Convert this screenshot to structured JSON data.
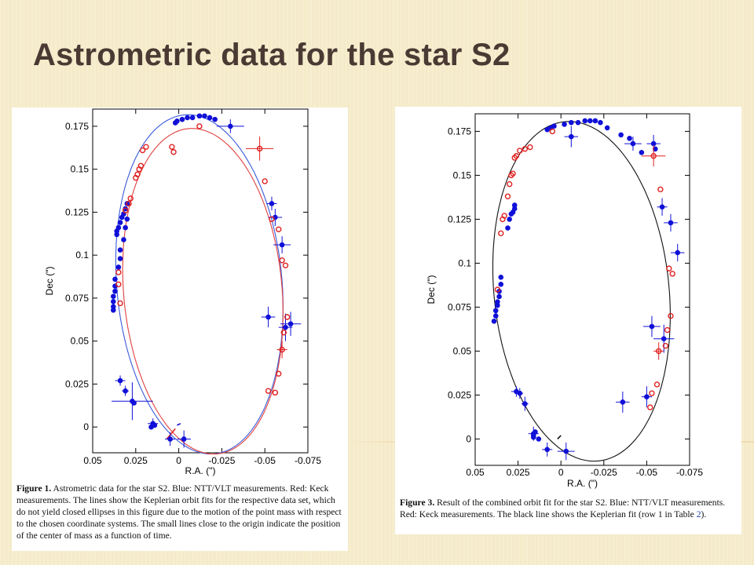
{
  "slide": {
    "title": "Astrometric data for the star S2"
  },
  "colors": {
    "ntt_vlt": "#1010d8",
    "keck": "#e02020",
    "combined_fit": "#111111"
  },
  "figures": [
    {
      "caption_lead": "Figure 1.",
      "caption_text": " Astrometric data for the star S2. Blue: NTT/VLT measurements. Red: Keck measurements. The lines show the Keplerian orbit fits for the respective data set, which do not yield closed ellipses in this figure due to the motion of the point mass with respect to the chosen coordinate systems. The small lines close to the origin indicate the position of the center of mass as a function of time."
    },
    {
      "caption_lead": "Figure 3.",
      "caption_text_1": " Result of the combined orbit fit for the star S2. Blue: NTT/VLT measurements. Red: Keck measurements. The black line shows the Keplerian fit (row 1 in Table ",
      "caption_ref": "2",
      "caption_text_2": ")."
    }
  ],
  "chart_data": [
    {
      "type": "scatter",
      "xlabel": "R.A. (\")",
      "ylabel": "Dec (\")",
      "xlim": [
        0.05,
        -0.075
      ],
      "ylim": [
        -0.015,
        0.185
      ],
      "x_ticks": [
        "0.05",
        "0.025",
        "0",
        "-0.025",
        "-0.05",
        "-0.075"
      ],
      "y_ticks": [
        "0",
        "0.025",
        "0.05",
        "0.075",
        "0.1",
        "0.125",
        "0.15",
        "0.175"
      ],
      "series": [
        {
          "name": "NTT/VLT",
          "color": "#1010d8",
          "x": [
            0.002,
            0.001,
            -0.002,
            -0.005,
            -0.008,
            -0.012,
            -0.015,
            -0.018,
            -0.021,
            -0.03,
            0.036,
            0.036,
            0.035,
            0.034,
            0.033,
            0.032,
            0.031,
            0.03,
            0.03,
            0.031,
            0.032,
            0.034,
            0.034,
            0.035,
            0.037,
            0.037,
            0.037,
            0.038,
            0.038,
            0.038,
            0.038,
            0.034,
            0.031,
            0.027,
            0.026,
            0.015,
            0.016,
            0.014,
            0.005,
            -0.003,
            -0.052,
            -0.062,
            -0.065,
            -0.06,
            -0.056,
            -0.054
          ],
          "y": [
            0.177,
            0.178,
            0.179,
            0.18,
            0.18,
            0.181,
            0.181,
            0.18,
            0.179,
            0.175,
            0.112,
            0.114,
            0.116,
            0.119,
            0.122,
            0.124,
            0.127,
            0.13,
            0.121,
            0.116,
            0.109,
            0.103,
            0.098,
            0.093,
            0.086,
            0.082,
            0.079,
            0.076,
            0.073,
            0.07,
            0.068,
            0.027,
            0.021,
            0.015,
            0.014,
            0.002,
            0.0,
            0.001,
            -0.007,
            -0.007,
            0.064,
            0.058,
            0.06,
            0.106,
            0.122,
            0.13
          ],
          "x_err": [
            0,
            0,
            0,
            0,
            0,
            0,
            0,
            0,
            0,
            0.008,
            0,
            0,
            0,
            0,
            0,
            0,
            0,
            0,
            0,
            0,
            0,
            0,
            0,
            0,
            0,
            0,
            0,
            0,
            0,
            0,
            0,
            0.003,
            0.002,
            0.012,
            0,
            0.003,
            0,
            0,
            0.003,
            0.004,
            0.004,
            0.004,
            0.006,
            0.005,
            0.004,
            0.003
          ],
          "y_err": [
            0,
            0,
            0,
            0,
            0,
            0,
            0,
            0,
            0,
            0.004,
            0,
            0,
            0,
            0,
            0,
            0,
            0,
            0,
            0,
            0,
            0,
            0,
            0,
            0,
            0,
            0,
            0,
            0,
            0,
            0,
            0,
            0.003,
            0.003,
            0.011,
            0,
            0.003,
            0,
            0,
            0.004,
            0.005,
            0.006,
            0.008,
            0.007,
            0.005,
            0.005,
            0.004
          ]
        },
        {
          "name": "Keck",
          "color": "#e02020",
          "x": [
            0.035,
            0.035,
            0.034,
            0.031,
            0.029,
            0.028,
            0.025,
            0.024,
            0.023,
            0.022,
            0.021,
            0.019,
            0.004,
            0.003,
            -0.012,
            -0.047,
            -0.05,
            -0.054,
            -0.058,
            -0.06,
            -0.062,
            -0.063,
            -0.061,
            -0.06,
            -0.058,
            -0.056,
            -0.052
          ],
          "y": [
            0.09,
            0.083,
            0.072,
            0.126,
            0.13,
            0.133,
            0.145,
            0.147,
            0.15,
            0.152,
            0.161,
            0.163,
            0.163,
            0.16,
            0.175,
            0.162,
            0.143,
            0.121,
            0.115,
            0.097,
            0.094,
            0.064,
            0.055,
            0.045,
            0.031,
            0.02,
            0.021
          ],
          "x_err": [
            0,
            0,
            0,
            0,
            0,
            0,
            0,
            0,
            0,
            0,
            0,
            0,
            0,
            0,
            0,
            0.008,
            0,
            0,
            0,
            0,
            0,
            0,
            0,
            0.003,
            0,
            0,
            0
          ],
          "y_err": [
            0,
            0,
            0,
            0,
            0,
            0,
            0,
            0,
            0,
            0,
            0,
            0,
            0,
            0,
            0,
            0.007,
            0,
            0,
            0,
            0,
            0,
            0,
            0,
            0.005,
            0,
            0,
            0
          ]
        }
      ],
      "orbit_fits": [
        {
          "name": "",
          "color": "#3a5ad8",
          "center": [
            -0.012,
            0.083
          ],
          "semi_axes": [
            0.048,
            0.099
          ],
          "rotation_deg": -5
        },
        {
          "name": "",
          "color": "#e04040",
          "center": [
            -0.014,
            0.079
          ],
          "semi_axes": [
            0.046,
            0.095
          ],
          "rotation_deg": -5
        }
      ],
      "origin_marks": [
        {
          "color": "#1010d8",
          "x": [
            0.001,
            -0.001
          ],
          "y": [
            0.001,
            0.002
          ]
        },
        {
          "color": "#e02020",
          "x": [
            0.007,
            0.002
          ],
          "y": [
            -0.007,
            -0.001
          ]
        }
      ]
    },
    {
      "type": "scatter",
      "xlabel": "R.A. (\")",
      "ylabel": "Dec (\")",
      "xlim": [
        0.05,
        -0.075
      ],
      "ylim": [
        -0.015,
        0.185
      ],
      "x_ticks": [
        "0.05",
        "0.025",
        "0",
        "-0.025",
        "-0.05",
        "-0.075"
      ],
      "y_ticks": [
        "0",
        "0.025",
        "0.05",
        "0.075",
        "0.1",
        "0.125",
        "0.15",
        "0.175"
      ],
      "series": [
        {
          "name": "NTT/VLT",
          "color": "#1010d8",
          "x": [
            0.008,
            0.006,
            0.004,
            -0.002,
            -0.006,
            -0.01,
            -0.014,
            -0.017,
            -0.02,
            -0.023,
            -0.027,
            -0.035,
            -0.04,
            -0.042,
            -0.047,
            0.039,
            0.038,
            0.038,
            0.037,
            0.037,
            0.036,
            0.036,
            0.035,
            0.035,
            0.031,
            0.03,
            0.029,
            0.028,
            0.027,
            0.027,
            0.026,
            0.024,
            0.021,
            0.016,
            0.016,
            0.016,
            0.015,
            0.013,
            0.008,
            -0.003,
            -0.006,
            -0.036,
            -0.05,
            -0.053,
            -0.06,
            -0.064,
            -0.068,
            -0.059,
            -0.054,
            -0.055
          ],
          "y": [
            0.176,
            0.177,
            0.178,
            0.179,
            0.18,
            0.18,
            0.181,
            0.181,
            0.181,
            0.18,
            0.177,
            0.173,
            0.171,
            0.168,
            0.163,
            0.067,
            0.07,
            0.073,
            0.076,
            0.078,
            0.081,
            0.084,
            0.088,
            0.092,
            0.12,
            0.125,
            0.128,
            0.129,
            0.131,
            0.133,
            0.027,
            0.026,
            0.02,
            0.003,
            0.001,
            0.002,
            0.004,
            0.0,
            -0.006,
            -0.007,
            0.172,
            0.021,
            0.024,
            0.064,
            0.057,
            0.123,
            0.106,
            0.132,
            0.168,
            0.165
          ],
          "x_err": [
            0,
            0,
            0,
            0,
            0,
            0,
            0,
            0,
            0,
            0,
            0,
            0,
            0,
            0.005,
            0,
            0,
            0,
            0,
            0,
            0,
            0,
            0,
            0,
            0,
            0,
            0,
            0,
            0,
            0,
            0,
            0.003,
            0.002,
            0.002,
            0.003,
            0,
            0,
            0,
            0,
            0.003,
            0.005,
            0.004,
            0.004,
            0.003,
            0.005,
            0.006,
            0.004,
            0.004,
            0.003,
            0.004,
            0
          ],
          "y_err": [
            0,
            0,
            0,
            0,
            0,
            0,
            0,
            0,
            0,
            0,
            0,
            0,
            0,
            0.004,
            0,
            0,
            0,
            0,
            0,
            0,
            0,
            0,
            0,
            0,
            0,
            0,
            0,
            0,
            0,
            0,
            0.003,
            0.003,
            0.004,
            0.004,
            0,
            0,
            0,
            0,
            0.004,
            0.005,
            0.006,
            0.006,
            0.006,
            0.006,
            0.008,
            0.005,
            0.005,
            0.005,
            0.005,
            0
          ]
        },
        {
          "name": "Keck",
          "color": "#e02020",
          "x": [
            0.037,
            0.035,
            0.034,
            0.033,
            0.031,
            0.03,
            0.029,
            0.028,
            0.027,
            0.026,
            0.024,
            0.021,
            0.018,
            0.005,
            -0.054,
            -0.058,
            -0.063,
            -0.065,
            -0.064,
            -0.062,
            -0.061,
            -0.057,
            -0.056,
            -0.053,
            -0.052
          ],
          "y": [
            0.085,
            0.117,
            0.125,
            0.127,
            0.138,
            0.145,
            0.15,
            0.151,
            0.16,
            0.161,
            0.164,
            0.165,
            0.166,
            0.175,
            0.161,
            0.142,
            0.097,
            0.094,
            0.07,
            0.062,
            0.053,
            0.05,
            0.031,
            0.026,
            0.018
          ],
          "x_err": [
            0,
            0,
            0,
            0,
            0,
            0,
            0,
            0,
            0,
            0,
            0,
            0,
            0,
            0,
            0.007,
            0,
            0,
            0,
            0,
            0,
            0,
            0.003,
            0,
            0,
            0
          ],
          "y_err": [
            0,
            0,
            0,
            0,
            0,
            0,
            0,
            0,
            0,
            0,
            0,
            0,
            0,
            0,
            0.006,
            0,
            0,
            0,
            0,
            0,
            0,
            0.005,
            0,
            0,
            0
          ]
        }
      ],
      "orbit_fits": [
        {
          "name": "",
          "color": "#111111",
          "center": [
            -0.012,
            0.084
          ],
          "semi_axes": [
            0.051,
            0.097
          ],
          "rotation_deg": -6
        }
      ],
      "origin_marks": [
        {
          "color": "#111111",
          "x": [
            0.002,
            0.0
          ],
          "y": [
            0.0,
            0.002
          ]
        }
      ]
    }
  ]
}
